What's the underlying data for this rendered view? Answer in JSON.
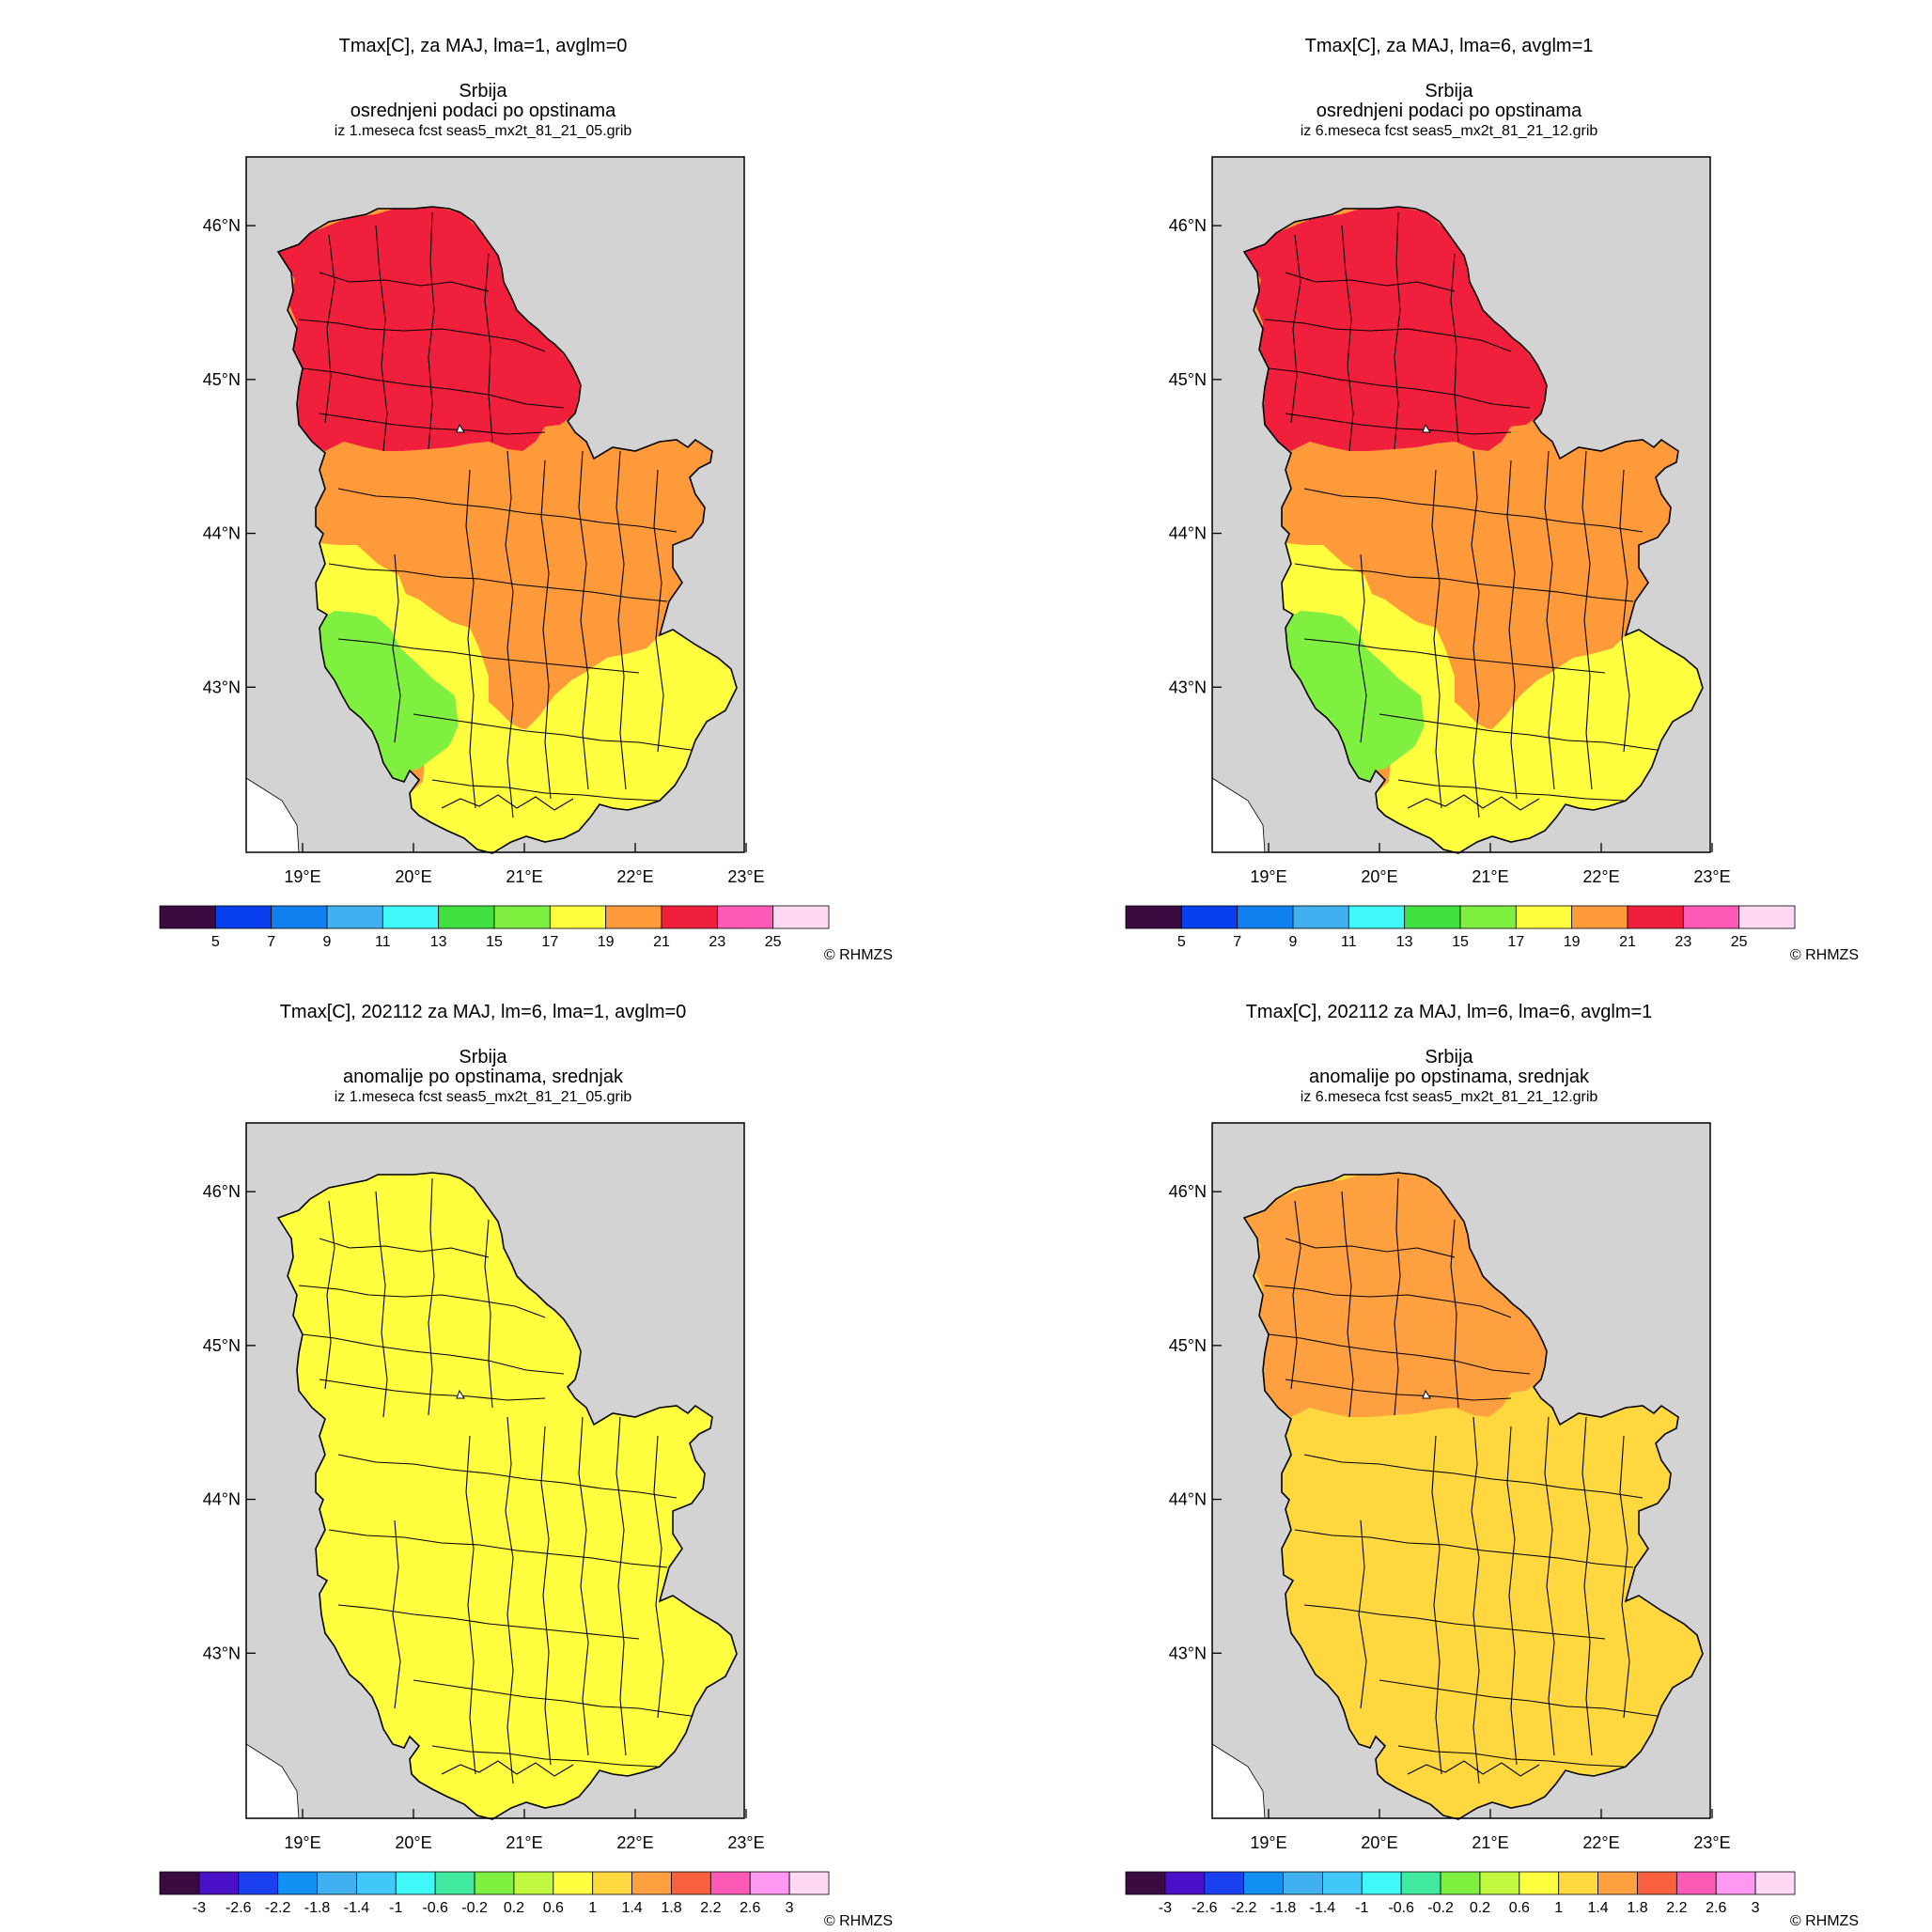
{
  "credit": "© RHMZS",
  "axes": {
    "x_ticks": [
      "19°E",
      "20°E",
      "21°E",
      "22°E",
      "23°E"
    ],
    "y_ticks": [
      "46°N",
      "45°N",
      "44°N",
      "43°N"
    ]
  },
  "colors": {
    "background": "#d3d3d3",
    "outside_land": "#ffffff"
  },
  "panels": [
    {
      "title1": "Tmax[C], za MAJ, lma=1, avglm=0",
      "title2": "Srbija",
      "title3": "osrednjeni podaci po opstinama",
      "title4": "iz 1.meseca fcst seas5_mx2t_81_21_05.grib",
      "colorbar": {
        "colors": [
          "#3a0a40",
          "#0840f0",
          "#1080f0",
          "#40b0f0",
          "#40f8f8",
          "#40e040",
          "#80f040",
          "#ffff40",
          "#ff9a3a",
          "#f0203c",
          "#ff5ab8",
          "#ffd8f4"
        ],
        "labels": [
          "5",
          "7",
          "9",
          "11",
          "13",
          "15",
          "17",
          "19",
          "21",
          "23",
          "25"
        ]
      },
      "regions": {
        "north": "#f0203c",
        "center": "#ff9a3a",
        "southwest": "#80f040",
        "south": "#ffff40",
        "southeast": "#ffff40",
        "west": "#ffff40"
      }
    },
    {
      "title1": "Tmax[C], za MAJ, lma=6, avglm=1",
      "title2": "Srbija",
      "title3": "osrednjeni podaci po opstinama",
      "title4": "iz 6.meseca fcst seas5_mx2t_81_21_12.grib",
      "colorbar": {
        "colors": [
          "#3a0a40",
          "#0840f0",
          "#1080f0",
          "#40b0f0",
          "#40f8f8",
          "#40e040",
          "#80f040",
          "#ffff40",
          "#ff9a3a",
          "#f0203c",
          "#ff5ab8",
          "#ffd8f4"
        ],
        "labels": [
          "5",
          "7",
          "9",
          "11",
          "13",
          "15",
          "17",
          "19",
          "21",
          "23",
          "25"
        ]
      },
      "regions": {
        "north": "#f0203c",
        "center": "#ff9a3a",
        "southwest": "#80f040",
        "south": "#ffff40",
        "southeast": "#ffff40",
        "west": "#ffff40"
      }
    },
    {
      "title1": "Tmax[C], 202112 za MAJ, lm=6, lma=1, avglm=0",
      "title2": "Srbija",
      "title3": "anomalije po opstinama, srednjak",
      "title4": "iz 1.meseca fcst seas5_mx2t_81_21_05.grib",
      "colorbar": {
        "colors": [
          "#3a0a40",
          "#4a10c8",
          "#1a40f0",
          "#1090f0",
          "#40b0f0",
          "#40c8f8",
          "#40f8f8",
          "#40e8a0",
          "#80f040",
          "#c0f840",
          "#ffff40",
          "#ffd840",
          "#ffa040",
          "#f86040",
          "#ff5ab8",
          "#ff98f0",
          "#ffd8f4"
        ],
        "labels": [
          "-3",
          "-2.6",
          "-2.2",
          "-1.8",
          "-1.4",
          "-1",
          "-0.6",
          "-0.2",
          "0.2",
          "0.6",
          "1",
          "1.4",
          "1.8",
          "2.2",
          "2.6",
          "3"
        ]
      },
      "regions": {
        "north": "#ffff40",
        "center": "#ffff40",
        "southwest": "#ffff40",
        "south": "#ffff40",
        "southeast": "#ffff40",
        "west": "#ffff40"
      }
    },
    {
      "title1": "Tmax[C], 202112 za MAJ, lm=6, lma=6, avglm=1",
      "title2": "Srbija",
      "title3": "anomalije po opstinama, srednjak",
      "title4": "iz 6.meseca fcst seas5_mx2t_81_21_12.grib",
      "colorbar": {
        "colors": [
          "#3a0a40",
          "#4a10c8",
          "#1a40f0",
          "#1090f0",
          "#40b0f0",
          "#40c8f8",
          "#40f8f8",
          "#40e8a0",
          "#80f040",
          "#c0f840",
          "#ffff40",
          "#ffd840",
          "#ffa040",
          "#f86040",
          "#ff5ab8",
          "#ff98f0",
          "#ffd8f4"
        ],
        "labels": [
          "-3",
          "-2.6",
          "-2.2",
          "-1.8",
          "-1.4",
          "-1",
          "-0.6",
          "-0.2",
          "0.2",
          "0.6",
          "1",
          "1.4",
          "1.8",
          "2.2",
          "2.6",
          "3"
        ]
      },
      "regions": {
        "north": "#ffa040",
        "center": "#ffd840",
        "southwest": "#ffd840",
        "south": "#ffd840",
        "southeast": "#ffd840",
        "west": "#ffd840"
      }
    }
  ]
}
